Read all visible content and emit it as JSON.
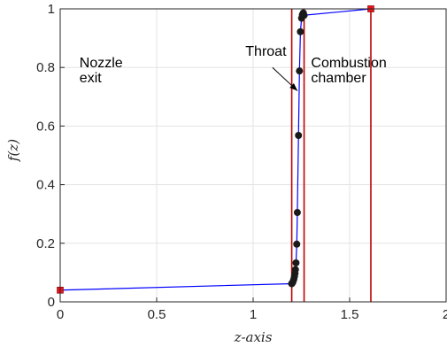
{
  "chart_data": {
    "type": "line",
    "xlabel": "z-axis",
    "ylabel": "f(z)",
    "xlim": [
      0,
      2
    ],
    "ylim": [
      0,
      1
    ],
    "grid": true,
    "x_ticks": [
      "0",
      "0.5",
      "1",
      "1.5",
      "2"
    ],
    "y_ticks": [
      "0",
      "0.2",
      "0.4",
      "0.6",
      "0.8",
      "1"
    ],
    "series": [
      {
        "color": "#0000ff",
        "points": [
          {
            "x": 0,
            "y": 0.04
          },
          {
            "x": 1.2,
            "y": 0.062
          },
          {
            "x": 1.2,
            "y": 0.062
          },
          {
            "x": 1.205,
            "y": 0.066
          },
          {
            "x": 1.208,
            "y": 0.072
          },
          {
            "x": 1.211,
            "y": 0.078
          },
          {
            "x": 1.214,
            "y": 0.087
          },
          {
            "x": 1.217,
            "y": 0.097
          },
          {
            "x": 1.219,
            "y": 0.11
          },
          {
            "x": 1.222,
            "y": 0.133
          },
          {
            "x": 1.226,
            "y": 0.197
          },
          {
            "x": 1.229,
            "y": 0.305
          },
          {
            "x": 1.235,
            "y": 0.568
          },
          {
            "x": 1.24,
            "y": 0.788
          },
          {
            "x": 1.245,
            "y": 0.922
          },
          {
            "x": 1.251,
            "y": 0.968
          },
          {
            "x": 1.255,
            "y": 0.98
          },
          {
            "x": 1.26,
            "y": 0.986
          },
          {
            "x": 1.264,
            "y": 0.978
          },
          {
            "x": 1.61,
            "y": 1.0
          }
        ],
        "node_marker_color": "#1a1a1a",
        "end_marker_color": "#e8141b"
      }
    ],
    "vertical_lines": {
      "color": "#c00000",
      "x": [
        1.2,
        1.264,
        1.61
      ]
    },
    "annotations": [
      {
        "text_lines": [
          "Throat"
        ],
        "x": 0.96,
        "y": 0.84
      },
      {
        "text_lines": [
          "Nozzle",
          "exit"
        ],
        "x": 0.1,
        "y": 0.8
      },
      {
        "text_lines": [
          "Combustion",
          "chamber"
        ],
        "x": 1.3,
        "y": 0.8
      }
    ],
    "arrow": {
      "from": [
        1.1,
        0.8
      ],
      "to": [
        1.23,
        0.72
      ]
    }
  }
}
